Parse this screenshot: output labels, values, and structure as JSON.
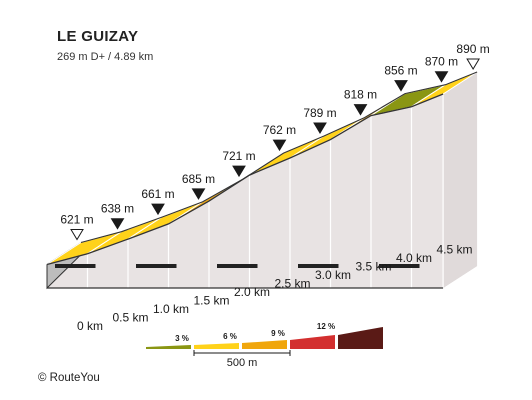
{
  "chart_data": {
    "type": "area",
    "title": "LE GUIZAY",
    "subtitle": "269 m D+ / 4.89 km",
    "x_unit": "km",
    "y_unit": "m",
    "x": [
      0,
      0.5,
      1.0,
      1.5,
      2.0,
      2.5,
      3.0,
      3.5,
      4.0,
      4.5,
      4.89
    ],
    "elevation": [
      621,
      638,
      661,
      685,
      721,
      762,
      789,
      818,
      856,
      870,
      890
    ],
    "elevation_labels": [
      "621 m",
      "638 m",
      "661 m",
      "685 m",
      "721 m",
      "762 m",
      "789 m",
      "818 m",
      "856 m",
      "870 m",
      "890 m"
    ],
    "x_tick_labels": [
      "0 km",
      "0.5 km",
      "1.0 km",
      "1.5 km",
      "2.0 km",
      "2.5 km",
      "3.0 km",
      "3.5 km",
      "4.0 km",
      "4.5 km"
    ],
    "segment_grade_colors": [
      "#ffd21a",
      "#ffd21a",
      "#ffd21a",
      "#f0a60c",
      "#f0a60c",
      "#ffd21a",
      "#ffd21a",
      "#f0a60c",
      "#8a9613",
      "#ffd21a"
    ],
    "legend": {
      "labels": [
        "3 %",
        "6 %",
        "9 %",
        "12 %"
      ],
      "colors": [
        "#8a9613",
        "#ffd21a",
        "#f0a60c",
        "#d32f2f",
        "#5a1a16"
      ],
      "scale_label": "500 m"
    }
  },
  "footer": {
    "copyright": "© RouteYou"
  }
}
